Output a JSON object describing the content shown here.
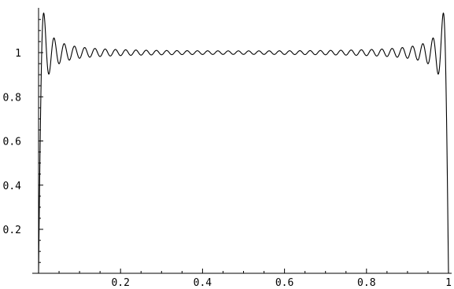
{
  "chart_data": {
    "type": "line",
    "title": "",
    "xlabel": "",
    "ylabel": "",
    "xlim": [
      0,
      1
    ],
    "ylim": [
      0,
      1.2
    ],
    "grid": false,
    "x_ticks": [
      {
        "value": 0.2,
        "label": "0.2"
      },
      {
        "value": 0.4,
        "label": "0.4"
      },
      {
        "value": 0.6,
        "label": "0.6"
      },
      {
        "value": 0.8,
        "label": "0.8"
      },
      {
        "value": 1.0,
        "label": "1"
      }
    ],
    "y_ticks": [
      {
        "value": 0.2,
        "label": "0.2"
      },
      {
        "value": 0.4,
        "label": "0.4"
      },
      {
        "value": 0.6,
        "label": "0.6"
      },
      {
        "value": 0.8,
        "label": "0.8"
      },
      {
        "value": 1.0,
        "label": "1"
      }
    ],
    "series": [
      {
        "function": "partial Fourier sum of square wave (Gibbs phenomenon)",
        "harmonics_odd_up_to": 79,
        "x_range": [
          0,
          1
        ],
        "overshoot_peak": 1.18
      }
    ]
  }
}
